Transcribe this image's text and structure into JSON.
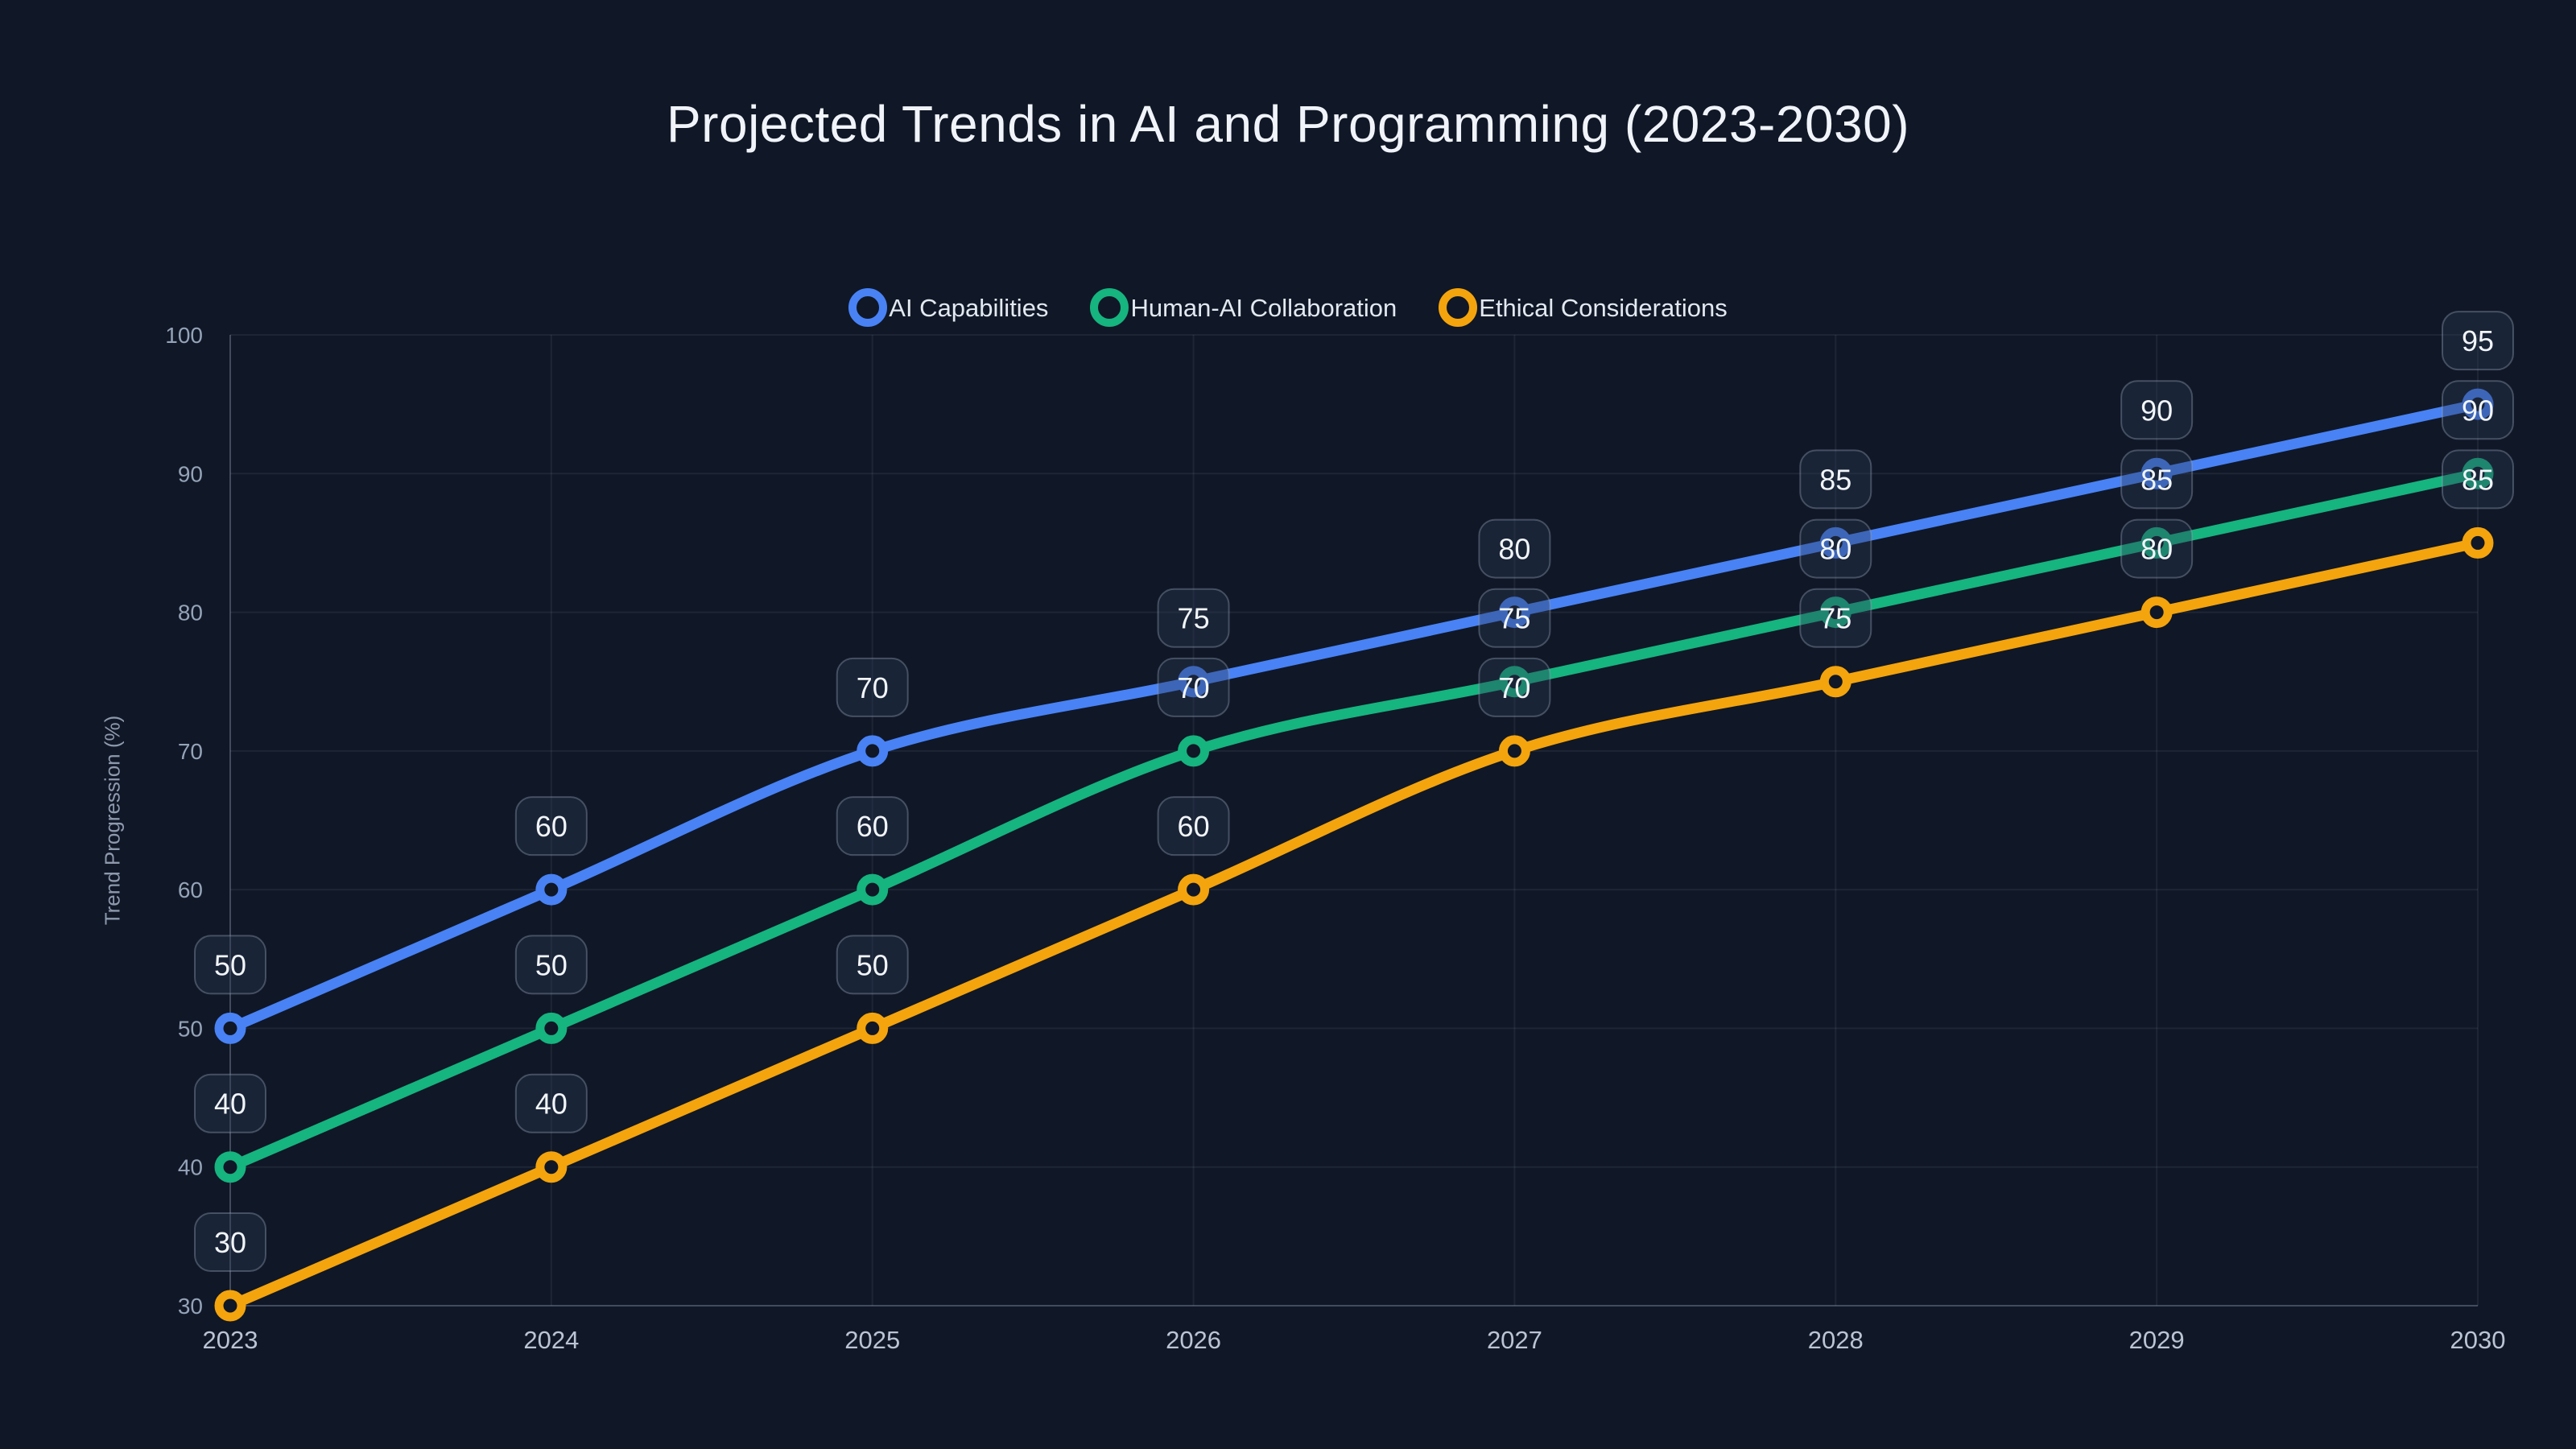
{
  "chart_data": {
    "type": "line",
    "title": "Projected Trends in AI and Programming (2023-2030)",
    "x": [
      "2023",
      "2024",
      "2025",
      "2026",
      "2027",
      "2028",
      "2029",
      "2030"
    ],
    "xlabel": "",
    "ylabel": "Trend Progression (%)",
    "ylim": [
      30,
      100
    ],
    "ytick_step": 10,
    "yticks": [
      30,
      40,
      50,
      60,
      70,
      80,
      90,
      100
    ],
    "grid": true,
    "legend_position": "top",
    "line_style": "smooth-monotone",
    "point_style": "ring",
    "data_labels": true,
    "series": [
      {
        "name": "AI Capabilities",
        "color": "#4882f5",
        "values": [
          50,
          60,
          70,
          75,
          80,
          85,
          90,
          95
        ]
      },
      {
        "name": "Human-AI Collaboration",
        "color": "#16b47f",
        "values": [
          40,
          50,
          60,
          70,
          75,
          80,
          85,
          90
        ]
      },
      {
        "name": "Ethical Considerations",
        "color": "#f4a40d",
        "values": [
          30,
          40,
          50,
          60,
          70,
          75,
          80,
          85
        ]
      }
    ]
  },
  "colors": {
    "background": "#101726",
    "grid": "rgba(148,163,184,0.11)",
    "axis": "rgba(148,163,184,0.30)",
    "y_tick_label": "#94a3b8",
    "x_tick_label": "#bac4d4",
    "title": "#f0f4fa",
    "legend_text": "#e3e9f1",
    "badge_bg": "rgba(44,57,83,0.38)",
    "badge_border": "rgba(148,163,184,0.38)",
    "badge_text": "#f1f5f9"
  }
}
